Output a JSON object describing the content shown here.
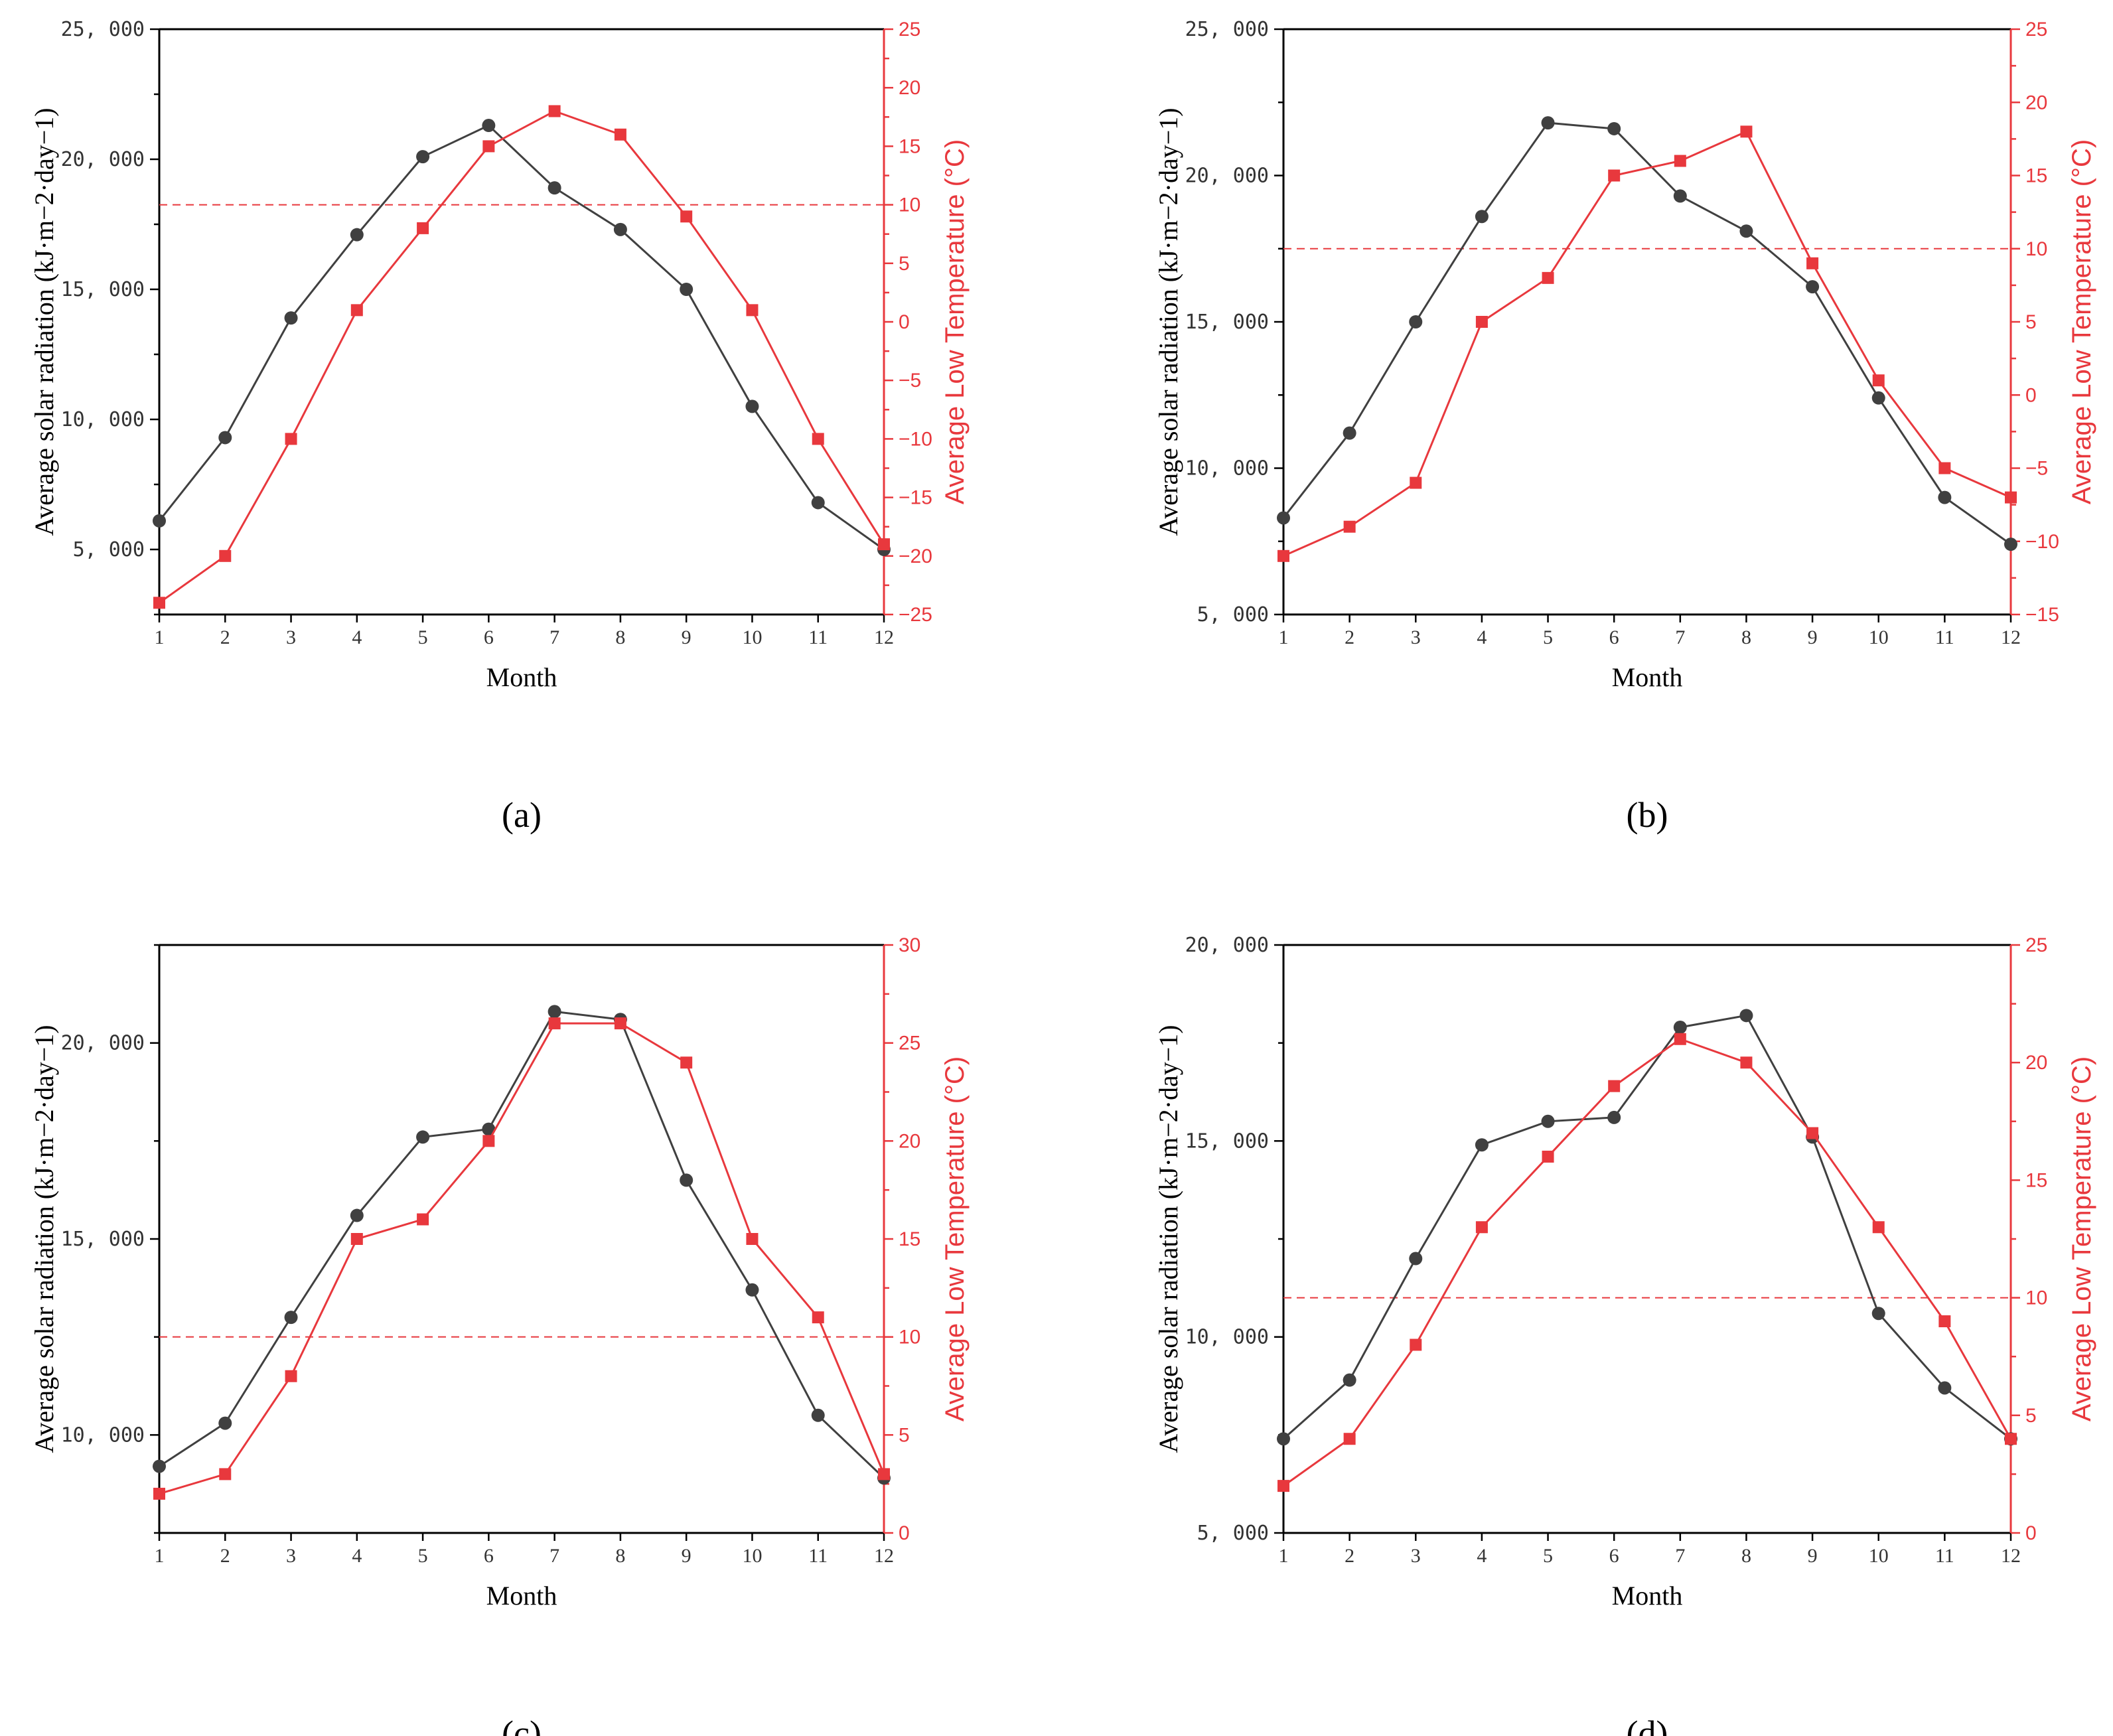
{
  "colors": {
    "radiation": "#404040",
    "temperature": "#e8383d",
    "frame": "#000000"
  },
  "chart_data": [
    {
      "type": "line",
      "panel_label": "(a)",
      "label_letter": "a",
      "xlabel": "Month",
      "ylabel": "Average solar radiation (kJ·m−2·day−1)",
      "y2label": "Average Low Temperature (°C)",
      "categories": [
        1,
        2,
        3,
        4,
        5,
        6,
        7,
        8,
        9,
        10,
        11,
        12
      ],
      "ylim": [
        2500,
        25000
      ],
      "y_ticks": [
        5000,
        10000,
        15000,
        20000,
        25000
      ],
      "y_tick_labels": [
        "5, 000",
        "10, 000",
        "15, 000",
        "20, 000",
        "25, 000"
      ],
      "y2lim": [
        -25,
        25
      ],
      "y2_ticks": [
        -25,
        -20,
        -15,
        -10,
        -5,
        0,
        5,
        10,
        15,
        20,
        25
      ],
      "threshold_y2": 10,
      "series": [
        {
          "name": "Average solar radiation",
          "axis": "left",
          "marker": "circle",
          "values": [
            6100,
            9300,
            13900,
            17100,
            20100,
            21300,
            18900,
            17300,
            15000,
            10500,
            6800,
            5000
          ]
        },
        {
          "name": "Average Low Temperature",
          "axis": "right",
          "marker": "square",
          "values": [
            -24,
            -20,
            -10,
            1,
            8,
            15,
            18,
            16,
            9,
            1,
            -10,
            -19
          ]
        }
      ]
    },
    {
      "type": "line",
      "panel_label": "(b)",
      "label_letter": "b",
      "xlabel": "Month",
      "ylabel": "Average solar radiation (kJ·m−2·day−1)",
      "y2label": "Average Low Temperature (°C)",
      "categories": [
        1,
        2,
        3,
        4,
        5,
        6,
        7,
        8,
        9,
        10,
        11,
        12
      ],
      "ylim": [
        5000,
        25000
      ],
      "y_ticks": [
        5000,
        10000,
        15000,
        20000,
        25000
      ],
      "y_tick_labels": [
        "5, 000",
        "10, 000",
        "15, 000",
        "20, 000",
        "25, 000"
      ],
      "y2lim": [
        -15,
        25
      ],
      "y2_ticks": [
        -15,
        -10,
        -5,
        0,
        5,
        10,
        15,
        20,
        25
      ],
      "threshold_y2": 10,
      "series": [
        {
          "name": "Average solar radiation",
          "axis": "left",
          "marker": "circle",
          "values": [
            8300,
            11200,
            15000,
            18600,
            21800,
            21600,
            19300,
            18100,
            16200,
            12400,
            9000,
            7400
          ]
        },
        {
          "name": "Average Low Temperature",
          "axis": "right",
          "marker": "square",
          "values": [
            -11,
            -9,
            -6,
            5,
            8,
            15,
            16,
            18,
            9,
            1,
            -5,
            -7
          ]
        }
      ]
    },
    {
      "type": "line",
      "panel_label": "(c)",
      "label_letter": "c",
      "xlabel": "Month",
      "ylabel": "Average solar radiation (kJ·m−2·day−1)",
      "y2label": "Average Low Temperature (°C)",
      "categories": [
        1,
        2,
        3,
        4,
        5,
        6,
        7,
        8,
        9,
        10,
        11,
        12
      ],
      "ylim": [
        7500,
        22500
      ],
      "y_ticks": [
        10000,
        15000,
        20000
      ],
      "y_tick_labels": [
        "10, 000",
        "15, 000",
        "20, 000"
      ],
      "y2lim": [
        0,
        30
      ],
      "y2_ticks": [
        0,
        5,
        10,
        15,
        20,
        25,
        30
      ],
      "threshold_y2": 10,
      "series": [
        {
          "name": "Average solar radiation",
          "axis": "left",
          "marker": "circle",
          "values": [
            9200,
            10300,
            13000,
            15600,
            17600,
            17800,
            20800,
            20600,
            16500,
            13700,
            10500,
            8900
          ]
        },
        {
          "name": "Average Low Temperature",
          "axis": "right",
          "marker": "square",
          "values": [
            2,
            3,
            8,
            15,
            16,
            20,
            26,
            26,
            24,
            15,
            11,
            3
          ]
        }
      ]
    },
    {
      "type": "line",
      "panel_label": "(d)",
      "label_letter": "d",
      "xlabel": "Month",
      "ylabel": "Average solar radiation (kJ·m−2·day−1)",
      "y2label": "Average Low Temperature (°C)",
      "categories": [
        1,
        2,
        3,
        4,
        5,
        6,
        7,
        8,
        9,
        10,
        11,
        12
      ],
      "ylim": [
        5000,
        20000
      ],
      "y_ticks": [
        5000,
        10000,
        15000,
        20000
      ],
      "y_tick_labels": [
        "5, 000",
        "10, 000",
        "15, 000",
        "20, 000"
      ],
      "y2lim": [
        0,
        25
      ],
      "y2_ticks": [
        0,
        5,
        10,
        15,
        20,
        25
      ],
      "threshold_y2": 10,
      "series": [
        {
          "name": "Average solar radiation",
          "axis": "left",
          "marker": "circle",
          "values": [
            7400,
            8900,
            12000,
            14900,
            15500,
            15600,
            17900,
            18200,
            15100,
            10600,
            8700,
            7400
          ]
        },
        {
          "name": "Average Low Temperature",
          "axis": "right",
          "marker": "square",
          "values": [
            2,
            4,
            8,
            13,
            16,
            19,
            21,
            20,
            17,
            13,
            9,
            4
          ]
        }
      ]
    }
  ]
}
